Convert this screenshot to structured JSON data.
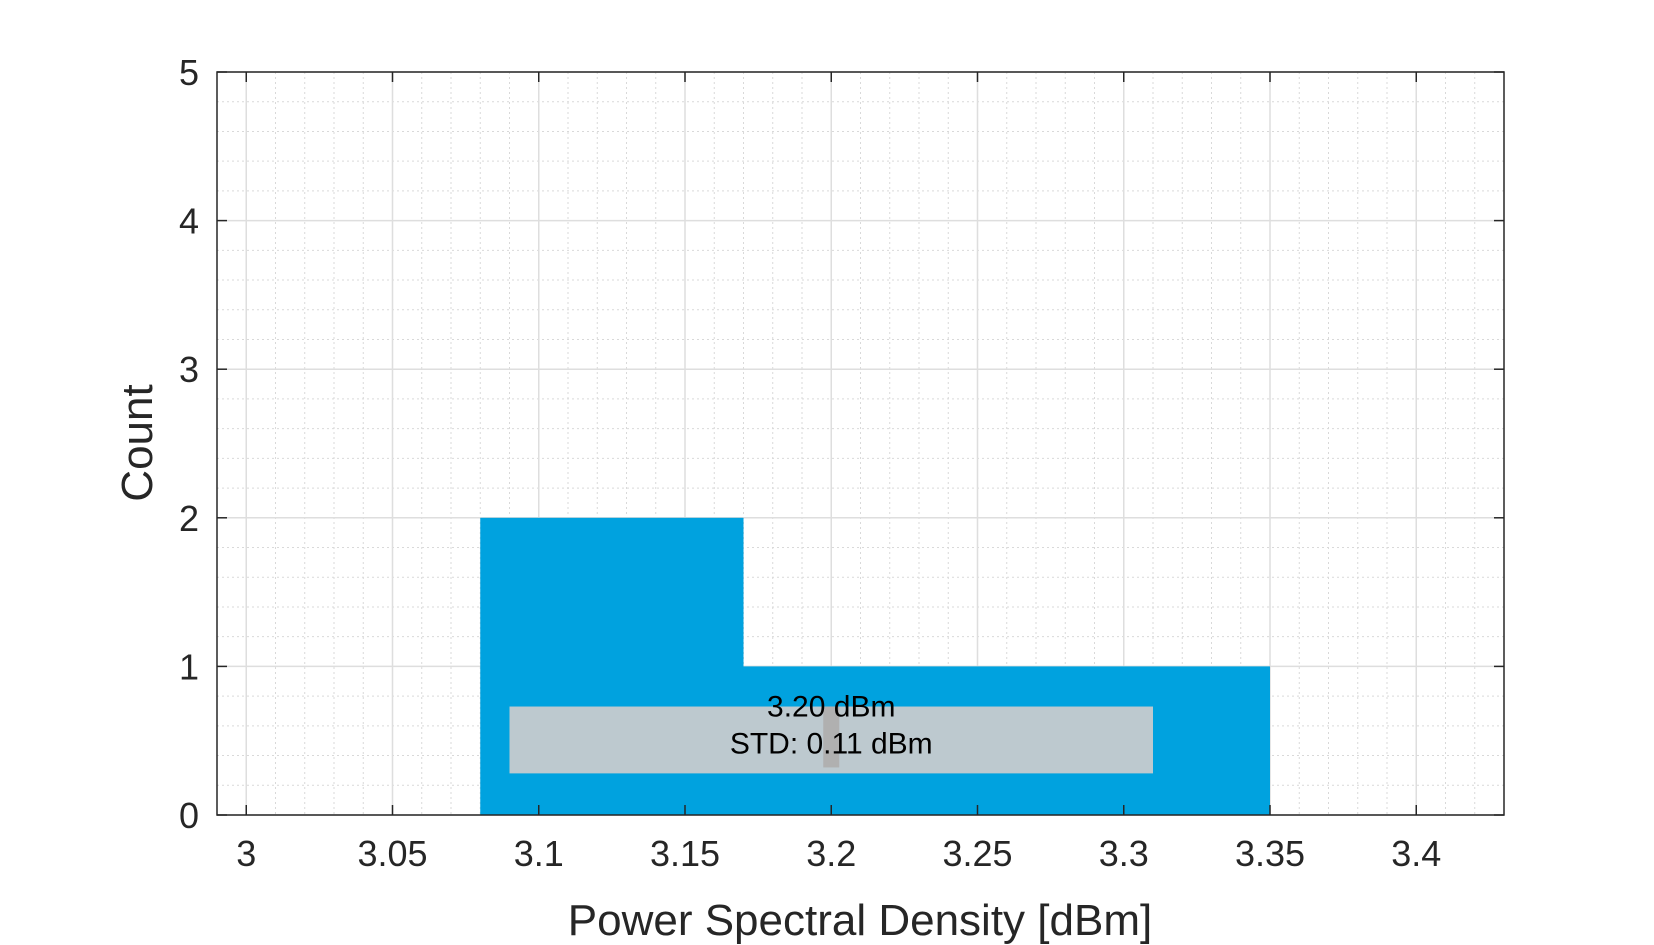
{
  "chart_data": {
    "type": "bar",
    "subtype": "histogram",
    "xlabel": "Power Spectral Density [dBm]",
    "ylabel": "Count",
    "xlim": [
      2.99,
      3.43
    ],
    "ylim": [
      0,
      5
    ],
    "x_ticks": [
      3,
      3.05,
      3.1,
      3.15,
      3.2,
      3.25,
      3.3,
      3.35,
      3.4
    ],
    "x_tick_labels": [
      "3",
      "3.05",
      "3.1",
      "3.15",
      "3.2",
      "3.25",
      "3.3",
      "3.35",
      "3.4"
    ],
    "y_ticks": [
      0,
      1,
      2,
      3,
      4,
      5
    ],
    "y_tick_labels": [
      "0",
      "1",
      "2",
      "3",
      "4",
      "5"
    ],
    "bins": [
      {
        "x_start": 3.08,
        "x_end": 3.17,
        "count": 2
      },
      {
        "x_start": 3.17,
        "x_end": 3.35,
        "count": 1
      }
    ],
    "grid": true,
    "minor_grid": true,
    "bar_color": "#00a2df",
    "annotation": {
      "lines": [
        "3.20 dBm",
        "STD: 0.11 dBm"
      ],
      "mean": 3.2,
      "std": 0.11,
      "box_color": "#bdc9cf"
    }
  }
}
